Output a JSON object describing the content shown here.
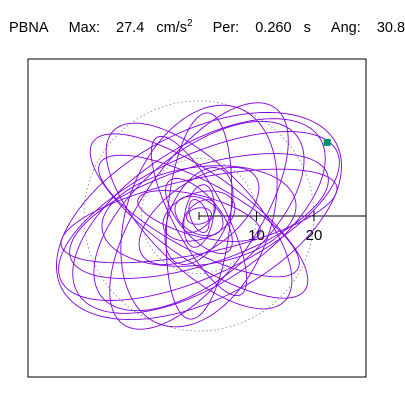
{
  "header": {
    "station": "PBNA",
    "max_label": "Max:",
    "max_value": "27.4",
    "max_unit": "cm/s",
    "max_unit_exp": "2",
    "per_label": "Per:",
    "per_value": "0.260",
    "per_unit": "s",
    "ang_label": "Ang:",
    "ang_value": "30.8"
  },
  "chart_data": {
    "type": "orbit",
    "title": "",
    "xlim": [
      -30,
      30
    ],
    "ylim": [
      -30,
      30
    ],
    "radial_ticks": [
      10,
      20
    ],
    "tick_labels": [
      "10",
      "20"
    ],
    "reference_circles": [
      10,
      20
    ],
    "trace_color": "#8000e0",
    "grid_color": "#808080",
    "marker_color": "#009070",
    "marker": {
      "x": 22.3,
      "y": 12.8
    },
    "orbits": [
      {
        "a": 26.5,
        "b": 10.5,
        "angle": 25
      },
      {
        "a": 25.0,
        "b": 12.0,
        "angle": 33
      },
      {
        "a": 23.5,
        "b": 8.5,
        "angle": 18
      },
      {
        "a": 22.0,
        "b": 11.0,
        "angle": 40
      },
      {
        "a": 27.0,
        "b": 14.5,
        "angle": 28
      },
      {
        "a": 24.5,
        "b": 6.5,
        "angle": 12
      },
      {
        "a": 22.5,
        "b": 7.5,
        "angle": -35
      },
      {
        "a": 21.0,
        "b": 9.0,
        "angle": -45
      },
      {
        "a": 19.5,
        "b": 6.0,
        "angle": -28
      },
      {
        "a": 23.0,
        "b": 10.0,
        "angle": 55
      },
      {
        "a": 20.0,
        "b": 12.5,
        "angle": 70
      },
      {
        "a": 18.0,
        "b": 5.5,
        "angle": 85
      },
      {
        "a": 15.5,
        "b": 4.5,
        "angle": -62
      },
      {
        "a": 17.0,
        "b": 8.5,
        "angle": 8
      },
      {
        "a": 12.0,
        "b": 6.0,
        "angle": 35
      },
      {
        "a": 11.0,
        "b": 3.5,
        "angle": -15
      },
      {
        "a": 9.0,
        "b": 5.0,
        "angle": 65
      },
      {
        "a": 8.0,
        "b": 3.5,
        "angle": -50
      },
      {
        "a": 6.5,
        "b": 4.0,
        "angle": 20
      },
      {
        "a": 5.5,
        "b": 2.5,
        "angle": 80
      },
      {
        "a": 4.5,
        "b": 3.0,
        "angle": -30
      },
      {
        "a": 3.5,
        "b": 2.0,
        "angle": 45
      },
      {
        "a": 3.0,
        "b": 1.5,
        "angle": -70
      },
      {
        "a": 2.2,
        "b": 1.4,
        "angle": 10
      }
    ]
  }
}
